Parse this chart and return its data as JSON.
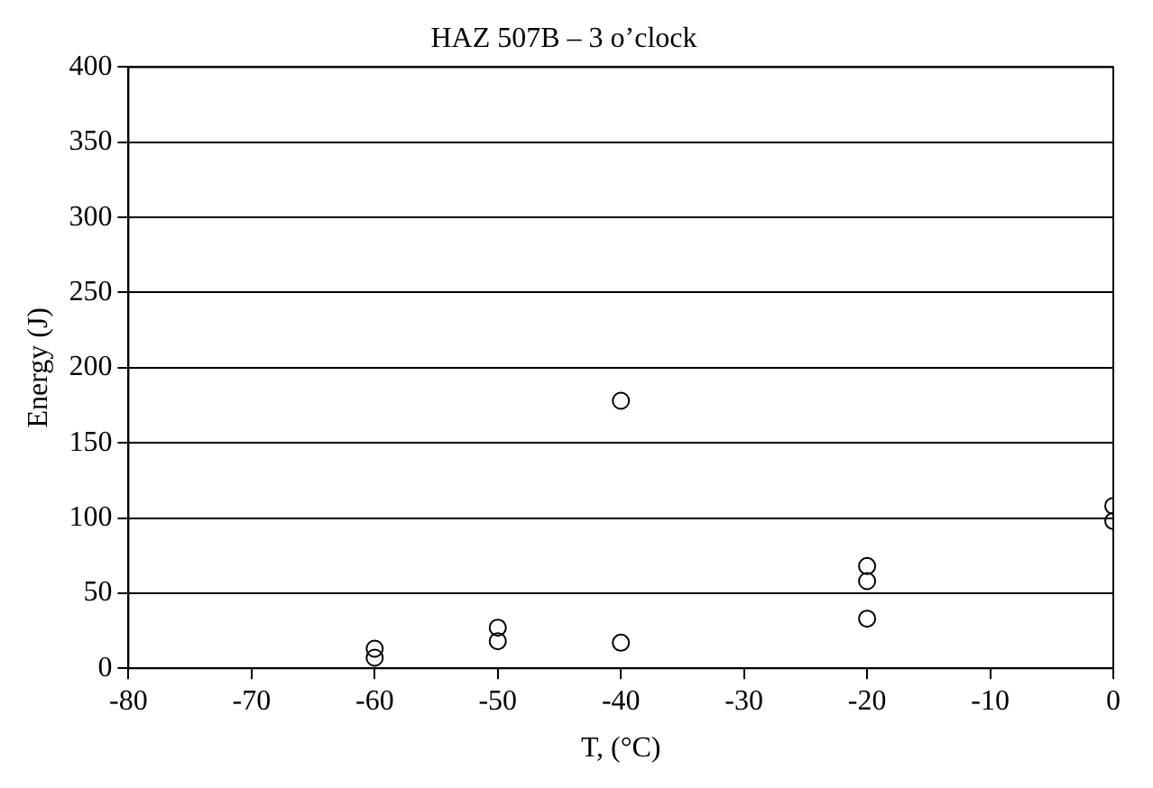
{
  "chart_data": {
    "type": "scatter",
    "title": "HAZ 507B – 3 o’clock",
    "xlabel": "T, (°C)",
    "ylabel": "Energy (J)",
    "series": [
      {
        "color": "#000000",
        "x": [
          -60,
          -60,
          -50,
          -50,
          -40,
          -40,
          -20,
          -20,
          -20,
          0,
          0
        ],
        "values": [
          7,
          13,
          27,
          18,
          178,
          17,
          68,
          58,
          33,
          108,
          98
        ]
      }
    ],
    "xlim": [
      -80,
      0
    ],
    "xticks": [
      -80,
      -70,
      -60,
      -50,
      -40,
      -30,
      -20,
      -10,
      0
    ],
    "ylim": [
      0,
      400
    ],
    "yticks": [
      0,
      50,
      100,
      150,
      200,
      250,
      300,
      350,
      400
    ],
    "grid": "y",
    "legend": false,
    "marker": "circle"
  }
}
